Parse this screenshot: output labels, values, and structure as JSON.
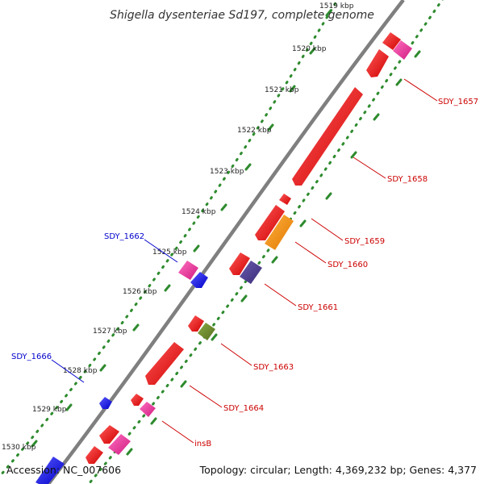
{
  "header": {
    "title": "Shigella dysenteriae Sd197, complete genome"
  },
  "footer": {
    "accession": "Accession: NC_007606",
    "summary": "Topology: circular; Length: 4,369,232 bp; Genes: 4,377"
  },
  "ruler": {
    "ticks": [
      "1519 kbp",
      "1520 kbp",
      "1521 kbp",
      "1522 kbp",
      "1523 kbp",
      "1524 kbp",
      "1525 kbp",
      "1526 kbp",
      "1527 kbp",
      "1528 kbp",
      "1529 kbp",
      "1530 kbp"
    ]
  },
  "genes": {
    "labels": [
      "SDY_1657",
      "SDY_1658",
      "SDY_1659",
      "SDY_1660",
      "SDY_1661",
      "SDY_1662",
      "SDY_1663",
      "SDY_1664",
      "SDY_1666",
      "insB"
    ]
  },
  "colors": {
    "backbone": "#7f7f7f",
    "forward_label": "#cc0000",
    "reverse_label": "#0000cc",
    "feature_red": "#ee0000",
    "feature_pink": "#ee2b96",
    "feature_blue": "#1a1aee",
    "feature_orange": "#f08a00",
    "feature_purple": "#4b3c8c",
    "feature_olive": "#6e8b2a",
    "ruler_dots": "#2e8b2e"
  }
}
